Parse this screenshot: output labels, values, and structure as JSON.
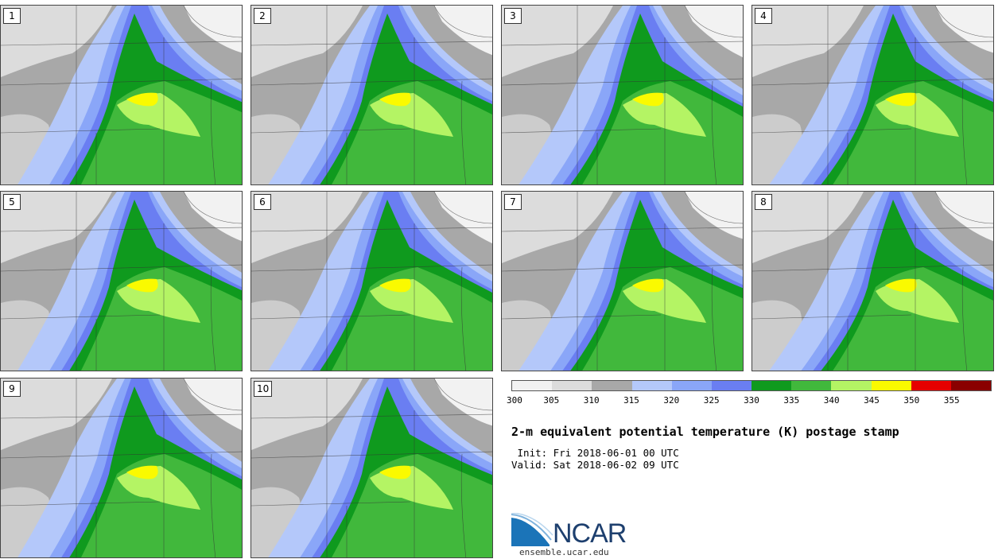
{
  "panels": [
    {
      "number": "1"
    },
    {
      "number": "2"
    },
    {
      "number": "3"
    },
    {
      "number": "4"
    },
    {
      "number": "5"
    },
    {
      "number": "6"
    },
    {
      "number": "7"
    },
    {
      "number": "8"
    },
    {
      "number": "9"
    },
    {
      "number": "10"
    }
  ],
  "colorbar": {
    "colors": [
      "#f2f2f2",
      "#dcdcdc",
      "#a8a8a8",
      "#b4c8fa",
      "#8aa6f8",
      "#6a7ef2",
      "#0f9a1e",
      "#41b83c",
      "#b4f464",
      "#fafa00",
      "#e60000",
      "#8a0000"
    ],
    "labels": [
      "300",
      "305",
      "310",
      "315",
      "320",
      "325",
      "330",
      "335",
      "340",
      "345",
      "350",
      "355"
    ]
  },
  "title": "2-m equivalent potential temperature (K) postage stamp",
  "init": " Init: Fri 2018-06-01 00 UTC",
  "valid": "Valid: Sat 2018-06-02 09 UTC",
  "logo": {
    "name": "NCAR",
    "url": "ensemble.ucar.edu"
  }
}
